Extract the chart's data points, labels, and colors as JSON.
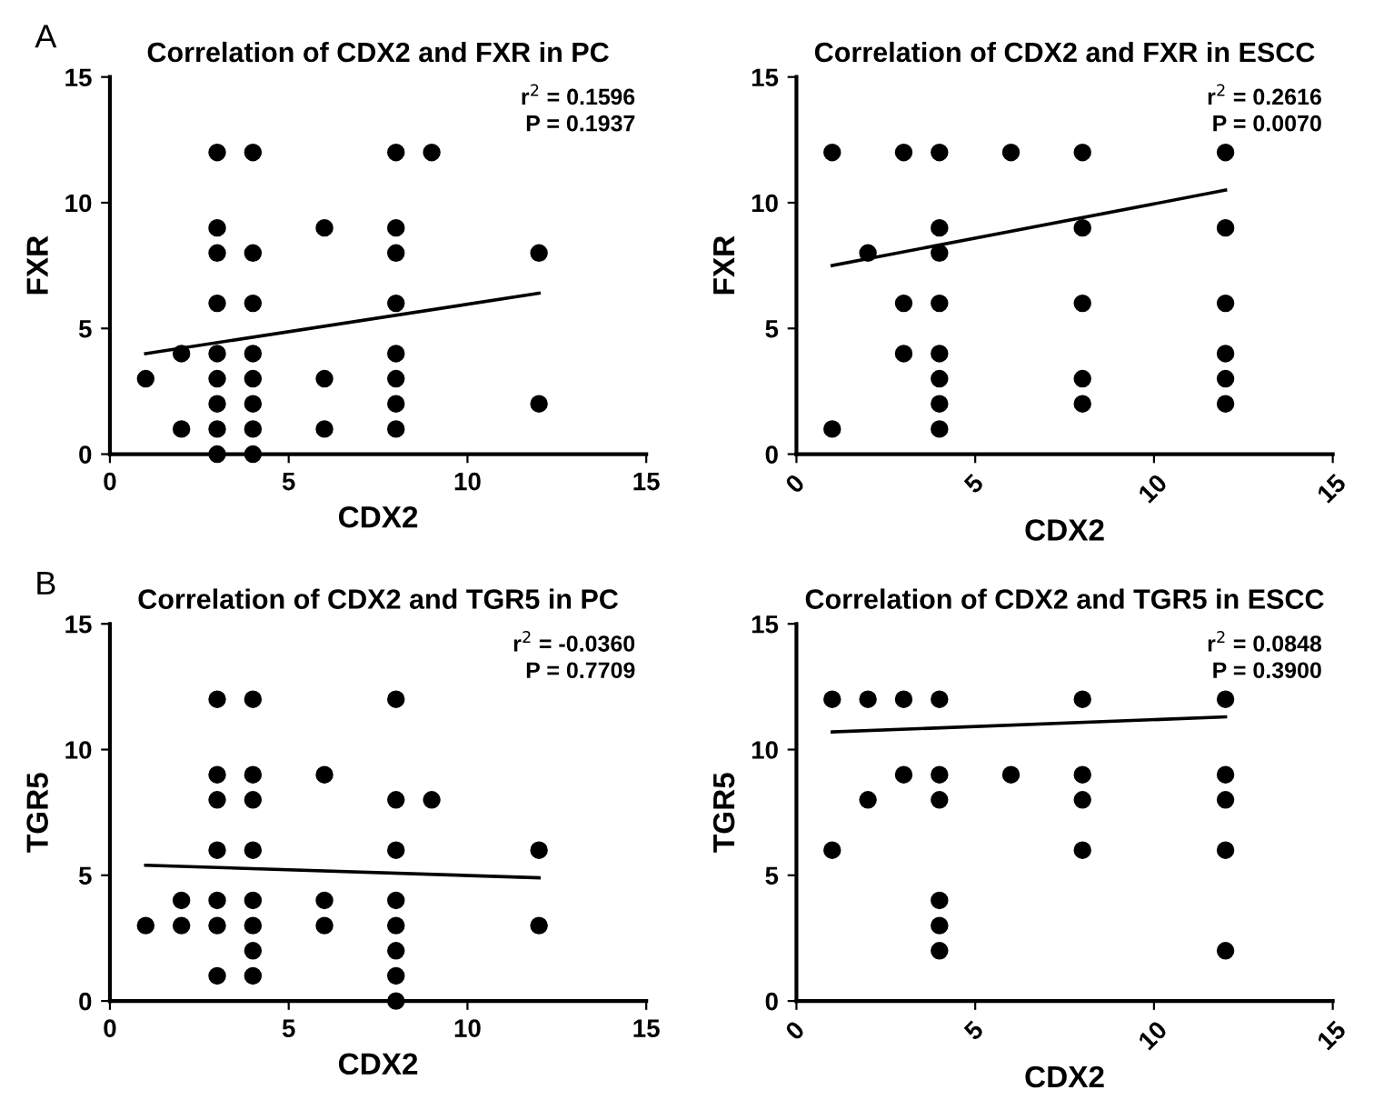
{
  "chart_data": [
    {
      "type": "scatter",
      "title": "Correlation of CDX2 and FXR in PC",
      "xlabel": "CDX2",
      "ylabel": "FXR",
      "xlim": [
        0,
        15
      ],
      "ylim": [
        0,
        15
      ],
      "xticks": [
        0,
        5,
        10,
        15
      ],
      "yticks": [
        0,
        5,
        10,
        15
      ],
      "grid": false,
      "legend": false,
      "marker": "circle",
      "annotations": [
        "A",
        "r$^{2}$ = 0.1596",
        "P = 0.1937"
      ],
      "series": [
        {
          "color": "#000000",
          "x": [
            1,
            2,
            2,
            3,
            3,
            3,
            3,
            3,
            3,
            3,
            3,
            3,
            4,
            4,
            4,
            4,
            4,
            4,
            4,
            4,
            6,
            6,
            6,
            8,
            8,
            8,
            8,
            8,
            8,
            8,
            8,
            9,
            12,
            12
          ],
          "values": [
            3,
            4,
            1,
            12,
            9,
            8,
            6,
            4,
            3,
            2,
            1,
            0,
            12,
            8,
            6,
            4,
            3,
            2,
            1,
            0,
            9,
            3,
            1,
            12,
            9,
            8,
            6,
            4,
            3,
            2,
            1,
            12,
            8,
            2
          ]
        },
        {
          "type": "line",
          "color": "#000000",
          "marker": "none",
          "line_style": "solid",
          "x": [
            1,
            12
          ],
          "values": [
            4.0,
            6.4
          ]
        }
      ]
    },
    {
      "type": "scatter",
      "title": "Correlation of CDX2 and FXR in ESCC",
      "xlabel": "CDX2",
      "ylabel": "FXR",
      "xlim": [
        0,
        15
      ],
      "ylim": [
        0,
        15
      ],
      "xticks": [
        0,
        5,
        10,
        15
      ],
      "yticks": [
        0,
        5,
        10,
        15
      ],
      "grid": false,
      "legend": false,
      "marker": "circle",
      "annotations": [
        "r$^{2}$ = 0.2616",
        "P = 0.0070"
      ],
      "series": [
        {
          "color": "#000000",
          "x": [
            1,
            1,
            2,
            3,
            3,
            3,
            4,
            4,
            4,
            4,
            4,
            4,
            4,
            4,
            6,
            8,
            8,
            8,
            8,
            8,
            12,
            12,
            12,
            12,
            12,
            12
          ],
          "values": [
            12,
            1,
            8,
            12,
            6,
            4,
            12,
            9,
            8,
            6,
            4,
            3,
            2,
            1,
            12,
            12,
            9,
            6,
            3,
            2,
            12,
            9,
            6,
            4,
            3,
            2
          ]
        },
        {
          "type": "line",
          "color": "#000000",
          "marker": "none",
          "line_style": "solid",
          "x": [
            1,
            12
          ],
          "values": [
            7.5,
            10.5
          ]
        }
      ]
    },
    {
      "type": "scatter",
      "title": "Correlation of CDX2 and TGR5 in PC",
      "xlabel": "CDX2",
      "ylabel": "TGR5",
      "xlim": [
        0,
        15
      ],
      "ylim": [
        0,
        15
      ],
      "xticks": [
        0,
        5,
        10,
        15
      ],
      "yticks": [
        0,
        5,
        10,
        15
      ],
      "grid": false,
      "legend": false,
      "marker": "circle",
      "annotations": [
        "B",
        "r$^{2}$ = -0.0360",
        "P = 0.7709"
      ],
      "series": [
        {
          "color": "#000000",
          "x": [
            1,
            2,
            2,
            3,
            3,
            3,
            3,
            3,
            3,
            3,
            4,
            4,
            4,
            4,
            4,
            4,
            4,
            4,
            6,
            6,
            6,
            8,
            8,
            8,
            8,
            8,
            8,
            8,
            8,
            9,
            12,
            12
          ],
          "values": [
            3,
            4,
            3,
            12,
            9,
            8,
            6,
            4,
            3,
            1,
            12,
            9,
            8,
            6,
            4,
            3,
            2,
            1,
            9,
            4,
            3,
            12,
            8,
            6,
            4,
            3,
            2,
            1,
            0,
            8,
            6,
            3
          ]
        },
        {
          "type": "line",
          "color": "#000000",
          "marker": "none",
          "line_style": "solid",
          "x": [
            1,
            12
          ],
          "values": [
            5.4,
            4.9
          ]
        }
      ]
    },
    {
      "type": "scatter",
      "title": "Correlation of CDX2 and TGR5 in ESCC",
      "xlabel": "CDX2",
      "ylabel": "TGR5",
      "xlim": [
        0,
        15
      ],
      "ylim": [
        0,
        15
      ],
      "xticks": [
        0,
        5,
        10,
        15
      ],
      "yticks": [
        0,
        5,
        10,
        15
      ],
      "grid": false,
      "legend": false,
      "marker": "circle",
      "annotations": [
        "r$^{2}$ = 0.0848",
        "P = 0.3900"
      ],
      "series": [
        {
          "color": "#000000",
          "x": [
            1,
            1,
            2,
            2,
            3,
            3,
            4,
            4,
            4,
            4,
            4,
            4,
            6,
            8,
            8,
            8,
            8,
            12,
            12,
            12,
            12,
            12
          ],
          "values": [
            12,
            6,
            12,
            8,
            12,
            9,
            12,
            9,
            8,
            4,
            3,
            2,
            9,
            12,
            9,
            8,
            6,
            12,
            9,
            8,
            6,
            2
          ]
        },
        {
          "type": "line",
          "color": "#000000",
          "marker": "none",
          "line_style": "solid",
          "x": [
            1,
            12
          ],
          "values": [
            10.7,
            11.3
          ]
        }
      ]
    }
  ]
}
